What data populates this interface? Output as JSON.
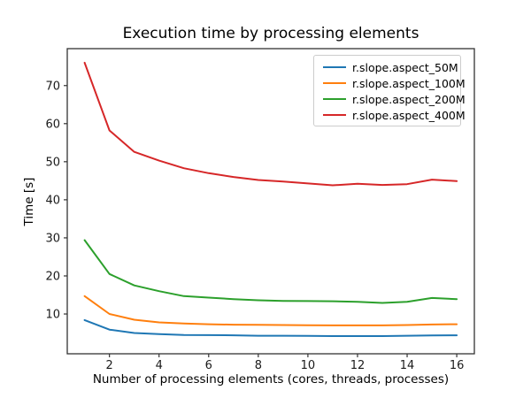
{
  "chart_data": {
    "type": "line",
    "title": "Execution time by processing elements",
    "xlabel": "Number of processing elements (cores, threads, processes)",
    "ylabel": "Time [s]",
    "x": [
      1,
      2,
      3,
      4,
      5,
      6,
      7,
      8,
      9,
      10,
      11,
      12,
      13,
      14,
      15,
      16
    ],
    "series": [
      {
        "name": "r.slope.aspect_50M",
        "color": "#1f77b4",
        "values": [
          8.4,
          5.9,
          5.0,
          4.7,
          4.5,
          4.45,
          4.4,
          4.3,
          4.3,
          4.25,
          4.2,
          4.2,
          4.2,
          4.3,
          4.35,
          4.4
        ]
      },
      {
        "name": "r.slope.aspect_100M",
        "color": "#ff7f0e",
        "values": [
          14.7,
          10.0,
          8.5,
          7.8,
          7.5,
          7.3,
          7.2,
          7.15,
          7.1,
          7.05,
          7.0,
          7.0,
          7.0,
          7.1,
          7.25,
          7.3
        ]
      },
      {
        "name": "r.slope.aspect_200M",
        "color": "#2ca02c",
        "values": [
          29.4,
          20.5,
          17.5,
          16.0,
          14.7,
          14.3,
          13.9,
          13.6,
          13.45,
          13.4,
          13.35,
          13.2,
          12.9,
          13.2,
          14.2,
          13.9
        ]
      },
      {
        "name": "r.slope.aspect_400M",
        "color": "#d62728",
        "values": [
          76.0,
          58.2,
          52.6,
          50.3,
          48.3,
          47.0,
          46.0,
          45.2,
          44.8,
          44.3,
          43.8,
          44.2,
          43.9,
          44.1,
          45.3,
          44.9
        ]
      }
    ],
    "x_ticks": [
      2,
      4,
      6,
      8,
      10,
      12,
      14,
      16
    ],
    "y_ticks": [
      10,
      20,
      30,
      40,
      50,
      60,
      70
    ],
    "xlim": [
      0.3,
      16.71
    ],
    "ylim": [
      -0.45,
      79.7
    ],
    "grid": false,
    "legend_position": "upper right",
    "axis_color": "#333333",
    "tick_label_color": "#1a1a1a"
  }
}
